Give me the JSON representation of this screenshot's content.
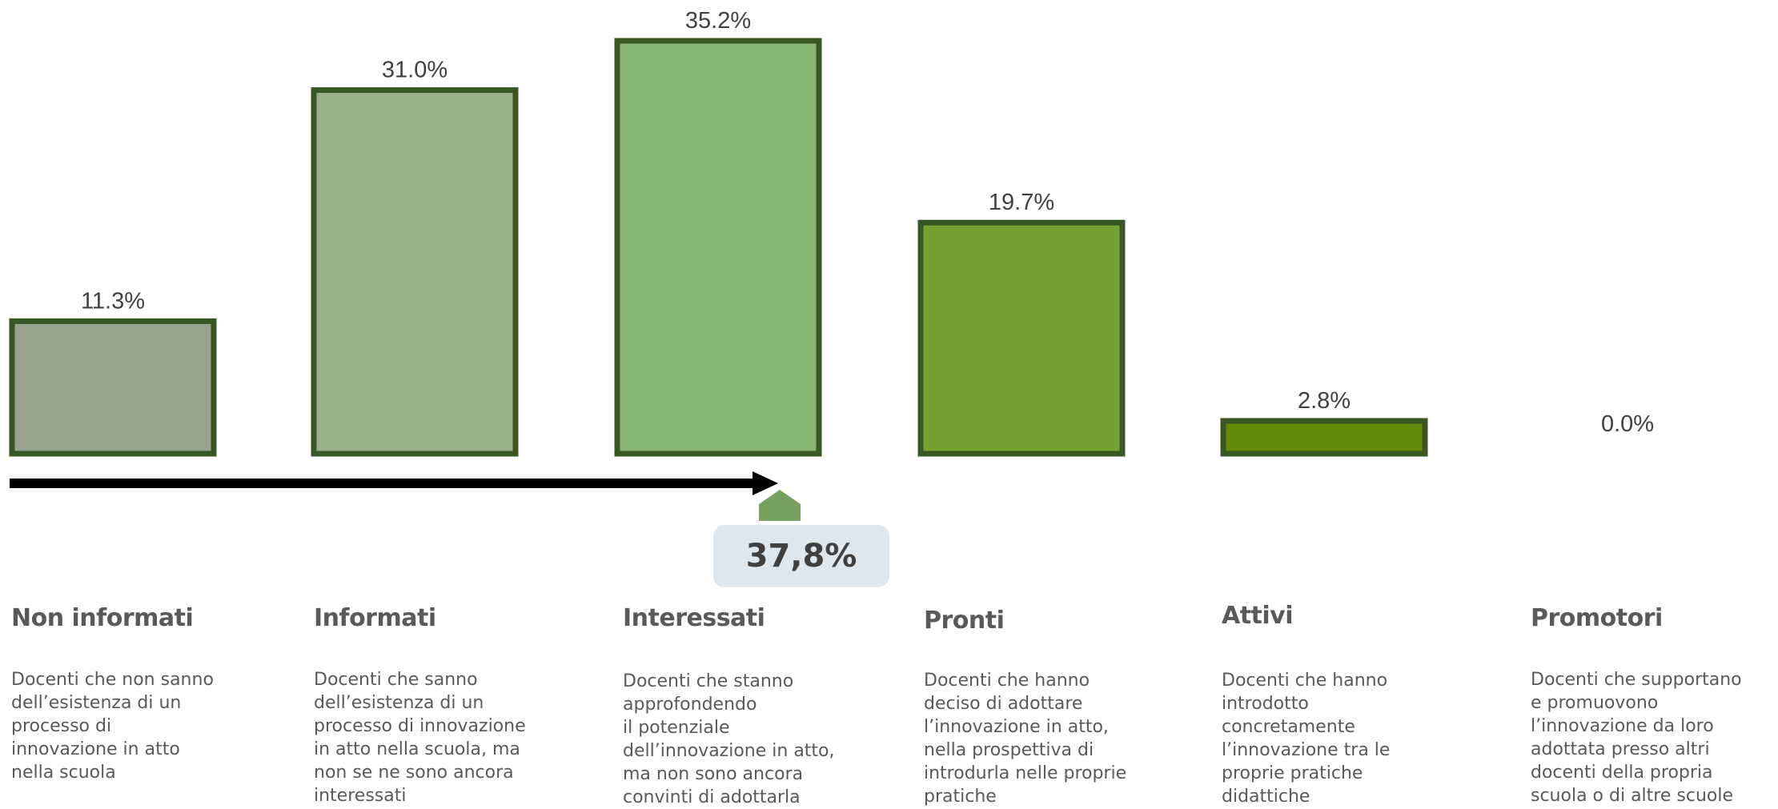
{
  "chart_data": {
    "type": "bar",
    "categories": [
      "Non informati",
      "Informati",
      "Interessati",
      "Pronti",
      "Attivi",
      "Promotori"
    ],
    "values": [
      11.3,
      31.0,
      35.2,
      19.7,
      2.8,
      0.0
    ],
    "value_labels": [
      "11.3%",
      "31.0%",
      "35.2%",
      "19.7%",
      "2.8%",
      "0.0%"
    ],
    "ylim": [
      0,
      35.2
    ],
    "grid": false,
    "colors": [
      "#97a28f",
      "#9bb18b",
      "#8ab676",
      "#73a233",
      "#658a0a",
      "#ffffff"
    ],
    "border_color": "#385723"
  },
  "callout": {
    "value": "37,8%",
    "color": "#dfe7ee",
    "pointer_color": "#76a15e"
  },
  "descriptions": [
    "Docenti che non sanno\ndell’esistenza di un\nprocesso di\ninnovazione in atto\nnella scuola",
    "Docenti che sanno\ndell’esistenza di un\nprocesso di innovazione\nin atto nella scuola, ma\nnon se ne sono ancora\ninteressati",
    "Docenti che stanno\napprofondendo\nil potenziale\ndell’innovazione in atto,\nma non sono ancora\nconvinti di adottarla",
    "Docenti che hanno\ndeciso di adottare\nl’innovazione in atto,\nnella prospettiva di\nintrodurla nelle proprie\npratiche",
    "Docenti che hanno\nintrodotto\nconcretamente\nl’innovazione tra le\nproprie  pratiche\ndidattiche",
    "Docenti che supportano\ne promuovono\nl’innovazione da loro\nadottata presso altri\ndocenti della propria\nscuola o di altre scuole"
  ]
}
